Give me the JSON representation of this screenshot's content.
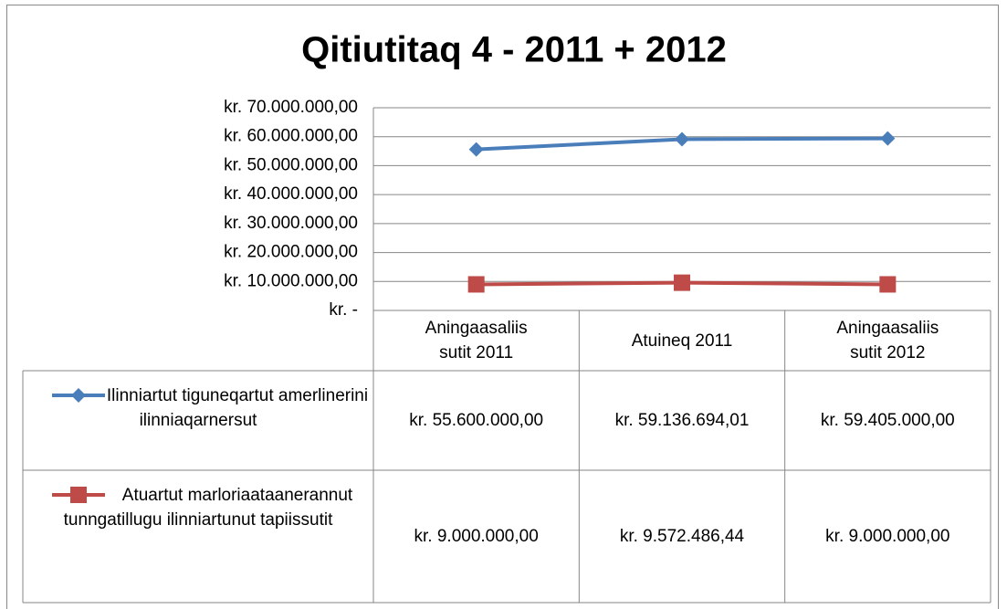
{
  "chart_data": {
    "type": "line",
    "title": "Qitiutitaq 4 - 2011 + 2012",
    "categories": [
      "Aningaasaliis sutit 2011",
      "Atuineq 2011",
      "Aningaasaliis sutit 2012"
    ],
    "series": [
      {
        "name": "Ilinniartut tiguneqartut amerlinerini ilinniaqarnersut",
        "color": "#4a7ebb",
        "marker": "diamond",
        "values": [
          55600000,
          59136694.01,
          59405000
        ],
        "value_labels": [
          "kr. 55.600.000,00",
          "kr. 59.136.694,01",
          "kr. 59.405.000,00"
        ]
      },
      {
        "name": "Atuartut marloriaataanerannut tunngatillugu ilinniartunut tapiissutit",
        "color": "#be4b48",
        "marker": "square",
        "values": [
          9000000,
          9572486.44,
          9000000
        ],
        "value_labels": [
          "kr. 9.000.000,00",
          "kr. 9.572.486,44",
          "kr. 9.000.000,00"
        ]
      }
    ],
    "ylim": [
      0,
      70000000
    ],
    "yticks": [
      {
        "value": 0,
        "label": "kr. -"
      },
      {
        "value": 10000000,
        "label": "kr. 10.000.000,00"
      },
      {
        "value": 20000000,
        "label": "kr. 20.000.000,00"
      },
      {
        "value": 30000000,
        "label": "kr. 30.000.000,00"
      },
      {
        "value": 40000000,
        "label": "kr. 40.000.000,00"
      },
      {
        "value": 50000000,
        "label": "kr. 50.000.000,00"
      },
      {
        "value": 60000000,
        "label": "kr. 60.000.000,00"
      },
      {
        "value": 70000000,
        "label": "kr. 70.000.000,00"
      }
    ],
    "grid": true,
    "data_table": true
  }
}
